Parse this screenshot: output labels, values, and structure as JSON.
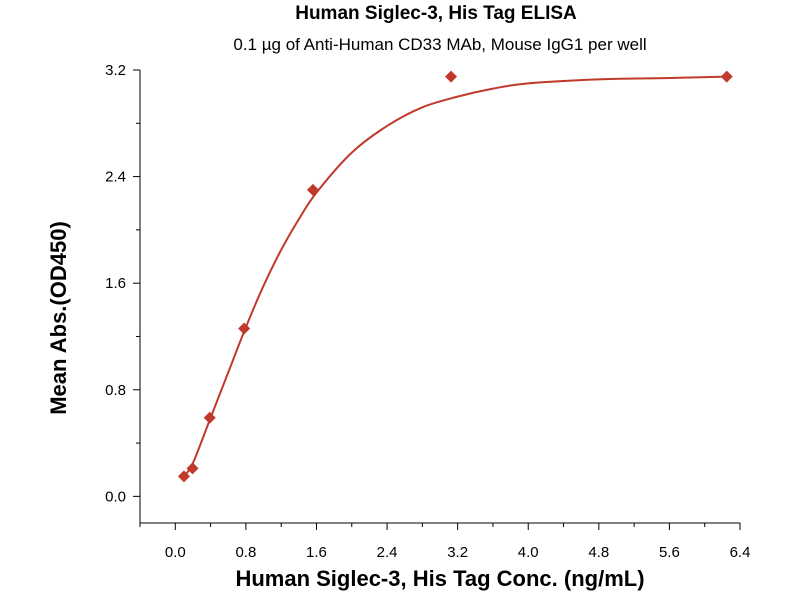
{
  "chart_data": {
    "type": "scatter",
    "title": "Human Siglec-3, His Tag ELISA",
    "subtitle": "0.1 µg of Anti-Human CD33 MAb, Mouse IgG1 per well",
    "xlabel": "Human Siglec-3, His Tag Conc. (ng/mL)",
    "ylabel": "Mean Abs.(OD450)",
    "xlim": [
      -0.4,
      6.4
    ],
    "ylim": [
      -0.2,
      3.2
    ],
    "x_ticks": [
      "0.0",
      "0.8",
      "1.6",
      "2.4",
      "3.2",
      "4.0",
      "4.8",
      "5.6",
      "6.4"
    ],
    "y_ticks": [
      "0.0",
      "0.8",
      "1.6",
      "2.4",
      "3.2"
    ],
    "grid": false,
    "legend": "none",
    "series": [
      {
        "marker": "diamond",
        "color": "#c0392b",
        "points": [
          {
            "x": 0.098,
            "y": 0.15
          },
          {
            "x": 0.195,
            "y": 0.21
          },
          {
            "x": 0.39,
            "y": 0.59
          },
          {
            "x": 0.78,
            "y": 1.26
          },
          {
            "x": 1.56,
            "y": 2.3
          },
          {
            "x": 3.125,
            "y": 3.15
          },
          {
            "x": 6.25,
            "y": 3.15
          }
        ]
      }
    ],
    "fit_curve": {
      "color": "#c0392b",
      "points": [
        {
          "x": 0.098,
          "y": 0.15
        },
        {
          "x": 0.2,
          "y": 0.25
        },
        {
          "x": 0.4,
          "y": 0.59
        },
        {
          "x": 0.6,
          "y": 0.93
        },
        {
          "x": 0.8,
          "y": 1.27
        },
        {
          "x": 1.0,
          "y": 1.58
        },
        {
          "x": 1.2,
          "y": 1.85
        },
        {
          "x": 1.4,
          "y": 2.08
        },
        {
          "x": 1.6,
          "y": 2.28
        },
        {
          "x": 2.0,
          "y": 2.58
        },
        {
          "x": 2.4,
          "y": 2.78
        },
        {
          "x": 2.8,
          "y": 2.92
        },
        {
          "x": 3.2,
          "y": 3.0
        },
        {
          "x": 3.6,
          "y": 3.06
        },
        {
          "x": 4.0,
          "y": 3.1
        },
        {
          "x": 4.8,
          "y": 3.13
        },
        {
          "x": 5.6,
          "y": 3.14
        },
        {
          "x": 6.25,
          "y": 3.15
        }
      ]
    }
  }
}
